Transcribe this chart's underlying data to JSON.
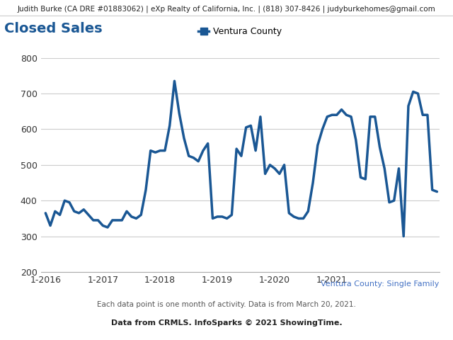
{
  "title_header": "Judith Burke (CA DRE #01883062) | eXp Realty of California, Inc. | (818) 307-8426 | judyburkehomes@gmail.com",
  "chart_title": "Closed Sales",
  "legend_label": "Ventura County",
  "subtitle": "Ventura County: Single Family",
  "footnote1": "Each data point is one month of activity. Data is from March 20, 2021.",
  "footnote2": "Data from CRMLS. InfoSparks © 2021 ShowingTime.",
  "line_color": "#1a5794",
  "ylim": [
    200,
    800
  ],
  "yticks": [
    200,
    300,
    400,
    500,
    600,
    700,
    800
  ],
  "xtick_labels": [
    "1-2016",
    "1-2017",
    "1-2018",
    "1-2019",
    "1-2020",
    "1-2021"
  ],
  "xtick_positions": [
    0,
    12,
    24,
    36,
    48,
    60
  ],
  "values": [
    365,
    330,
    370,
    360,
    400,
    395,
    370,
    365,
    375,
    360,
    345,
    345,
    330,
    325,
    345,
    345,
    345,
    370,
    355,
    350,
    360,
    430,
    540,
    535,
    540,
    540,
    610,
    735,
    645,
    575,
    525,
    520,
    510,
    540,
    560,
    350,
    355,
    355,
    350,
    360,
    545,
    525,
    605,
    610,
    540,
    635,
    475,
    500,
    490,
    475,
    500,
    365,
    355,
    350,
    350,
    370,
    450,
    555,
    600,
    635,
    640,
    640,
    655,
    640,
    635,
    570,
    465,
    460,
    635,
    635,
    550,
    490,
    395,
    400,
    490,
    300,
    665,
    705,
    700,
    640,
    640,
    430,
    425
  ],
  "bg_color": "#ffffff",
  "header_fontsize": 7.5,
  "title_fontsize": 14,
  "legend_fontsize": 9,
  "tick_fontsize": 9,
  "subtitle_fontsize": 8,
  "footnote_fontsize": 7.5,
  "footnote2_fontsize": 8
}
